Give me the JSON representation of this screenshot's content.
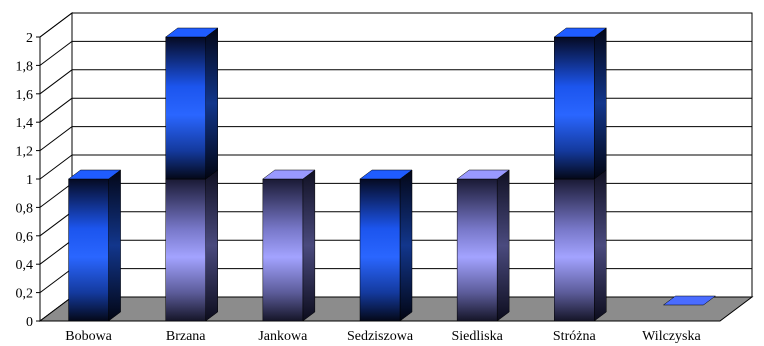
{
  "chart_data": {
    "type": "bar",
    "title": "",
    "xlabel": "",
    "ylabel": "",
    "ylim": [
      0,
      2
    ],
    "y_ticks": [
      "0",
      "0,2",
      "0,4",
      "0,6",
      "0,8",
      "1",
      "1,2",
      "1,4",
      "1,6",
      "1,8",
      "2"
    ],
    "categories": [
      "Bobowa",
      "Brzana",
      "Jankowa",
      "Sedziszowa",
      "Siedliska",
      "Stróżna",
      "Wilczyska"
    ],
    "series": [
      {
        "values": [
          0,
          1,
          1,
          0,
          1,
          1,
          0
        ],
        "color": "#9999ff"
      },
      {
        "values": [
          1,
          1,
          0,
          1,
          0,
          1,
          0
        ],
        "color": "#1f5cff"
      }
    ],
    "grid": true,
    "legend": "none",
    "style": "3d-stacked-bar"
  }
}
